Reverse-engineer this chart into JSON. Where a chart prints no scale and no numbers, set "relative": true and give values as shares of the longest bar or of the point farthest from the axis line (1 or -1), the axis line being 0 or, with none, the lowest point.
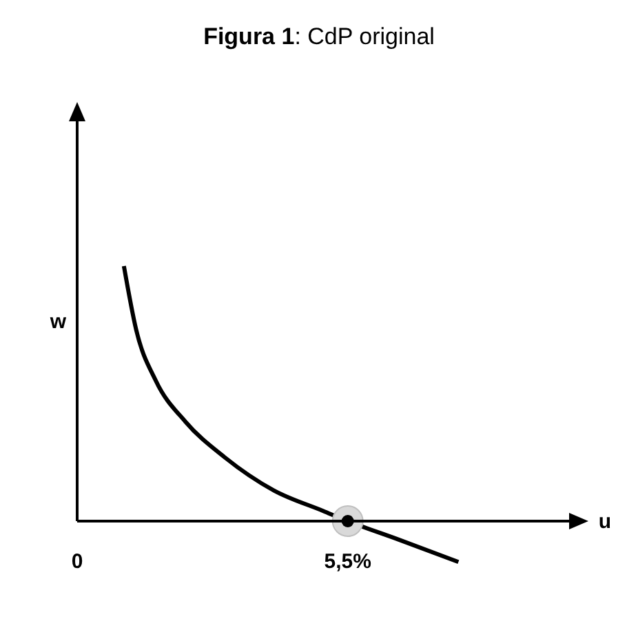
{
  "chart_data": {
    "type": "line",
    "title": "Figura 1: CdP original",
    "xlabel": "u",
    "ylabel": "w",
    "relative": true,
    "xlim": [
      0,
      10
    ],
    "xticks": [
      {
        "value": 0,
        "label": "0"
      },
      {
        "value": 5.5,
        "label": "5,5%"
      }
    ],
    "series": [
      {
        "color": "#000000",
        "x": [
          0.95,
          1.2,
          1.6,
          2.2,
          3,
          4,
          5,
          5.5,
          6.5,
          7.75
        ],
        "values": [
          1,
          0.75,
          0.55,
          0.39,
          0.25,
          0.12,
          0.04,
          0,
          -0.07,
          -0.16
        ]
      },
      {
        "type": "scatter",
        "marker": "circle",
        "color": "#000000",
        "x": [
          5.5
        ],
        "values": [
          0
        ]
      }
    ]
  }
}
